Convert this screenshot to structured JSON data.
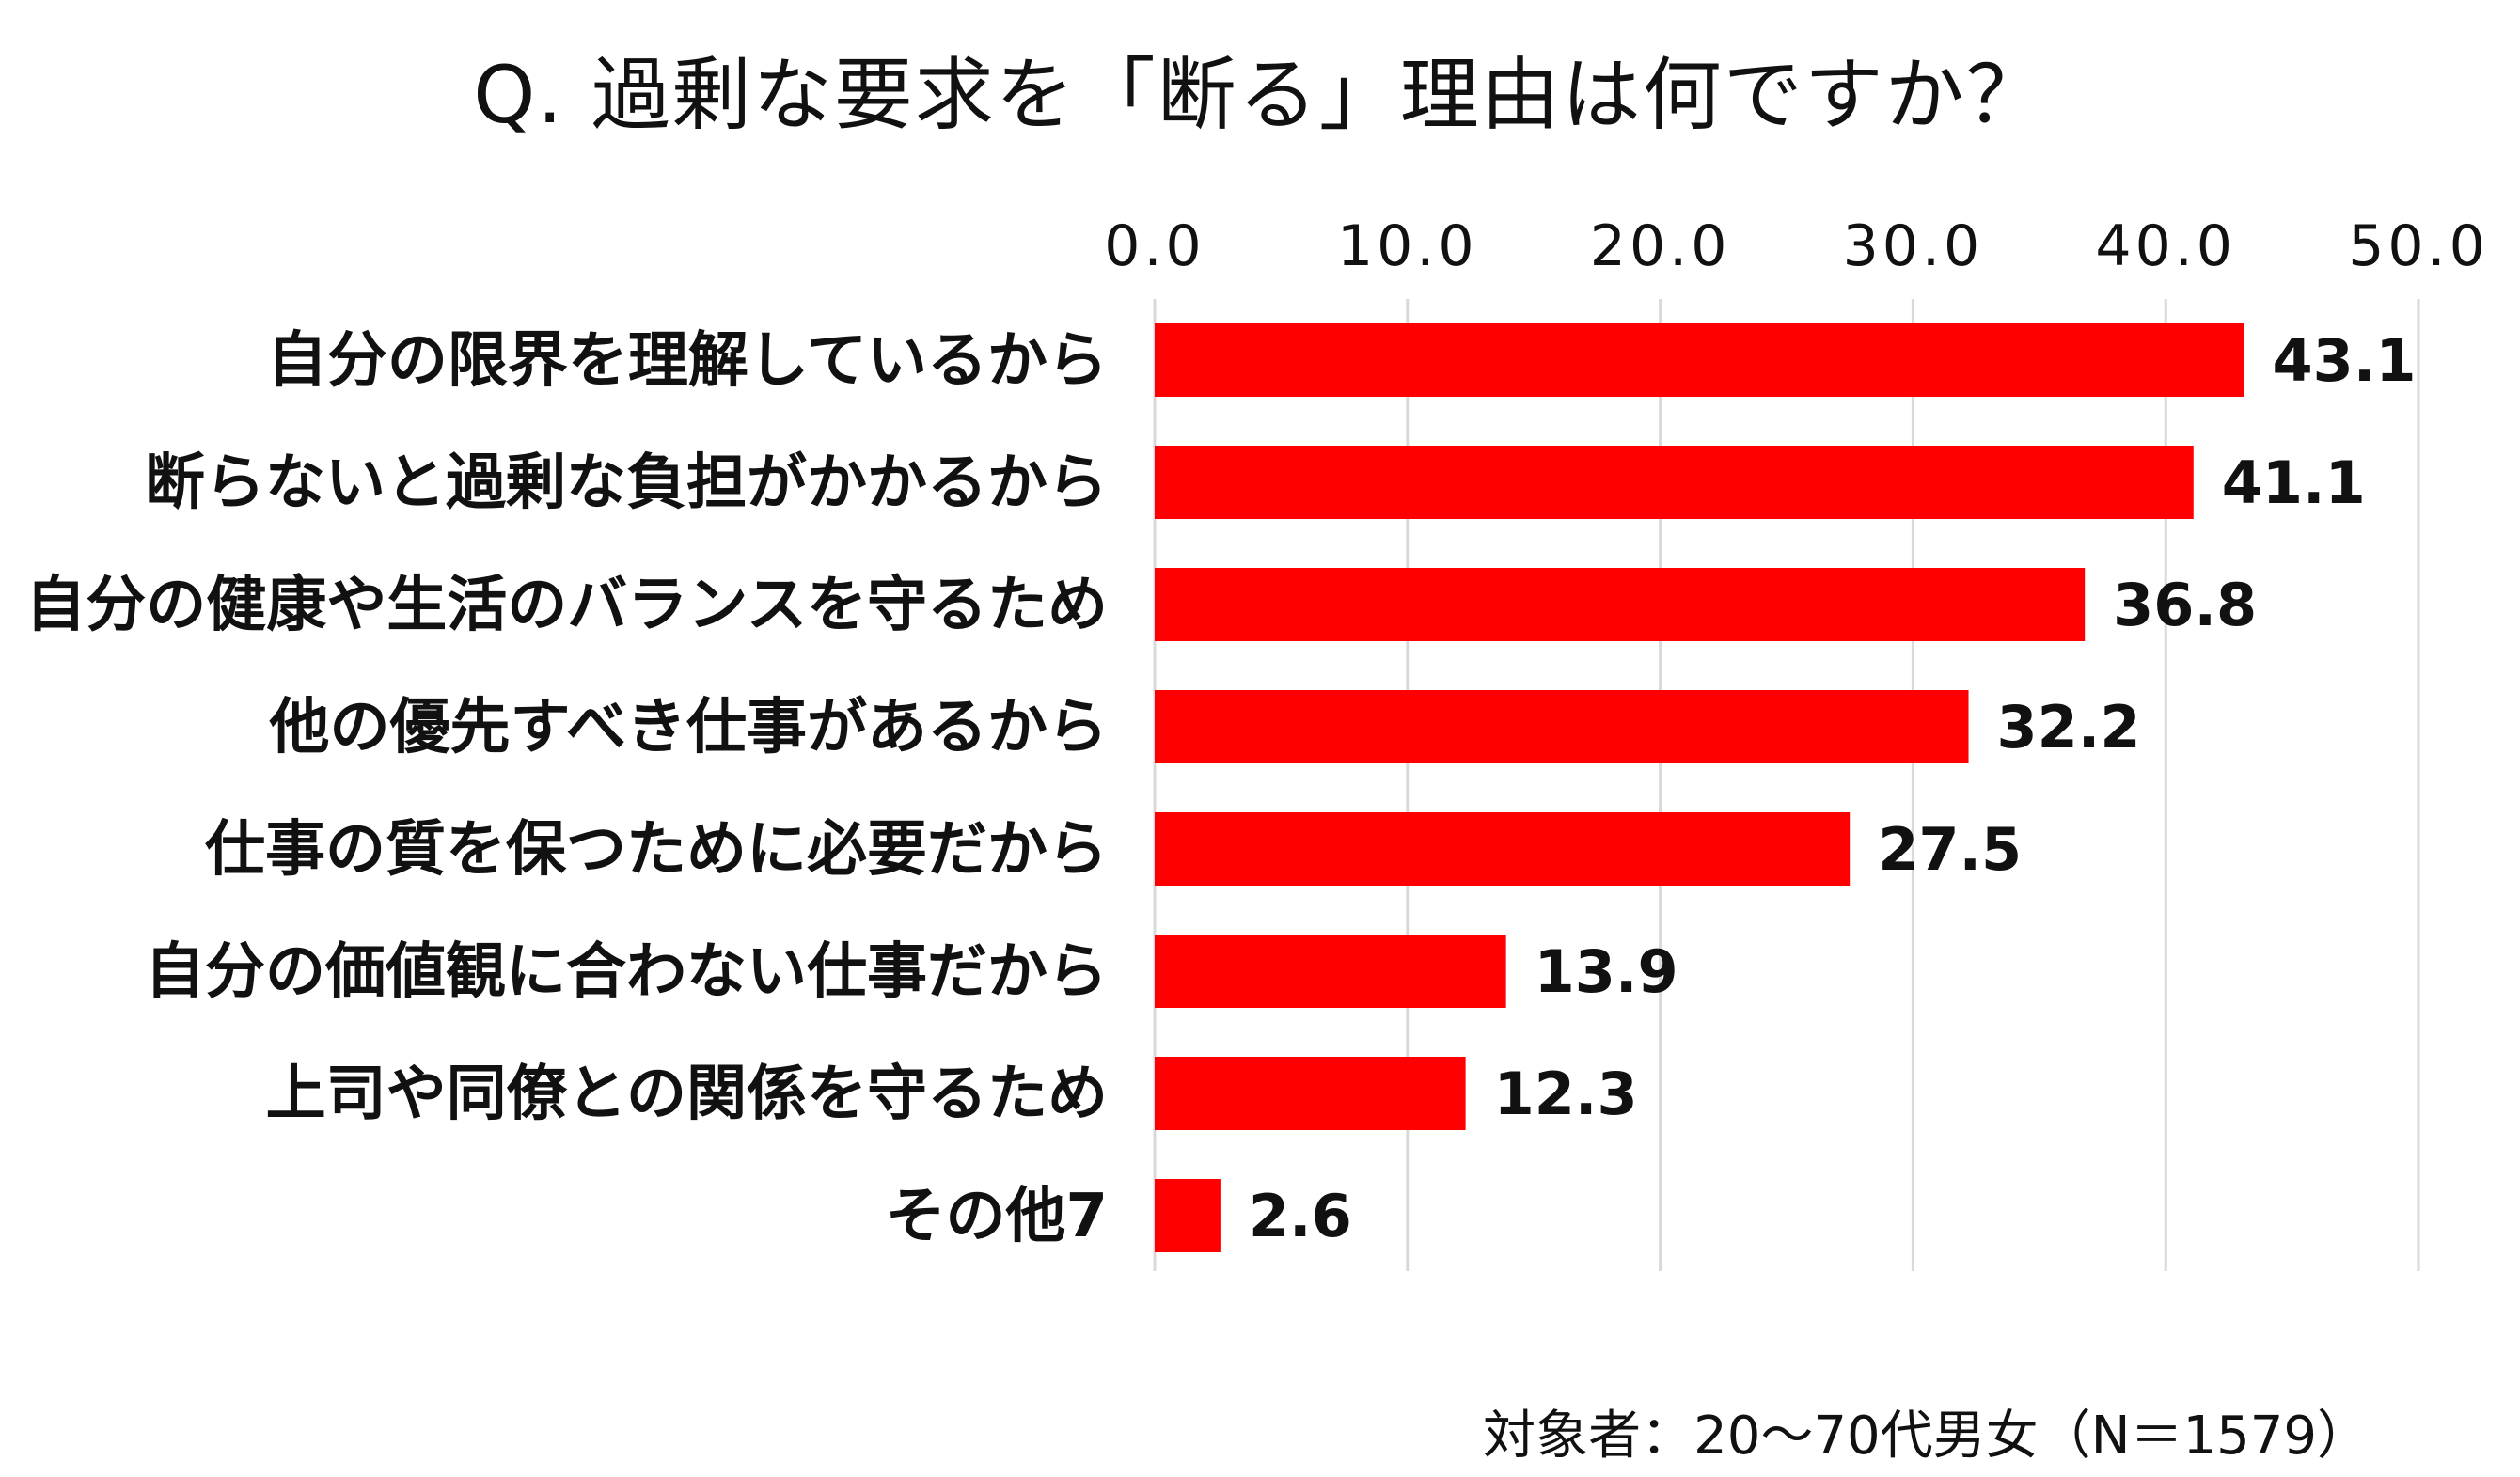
{
  "chart_data": {
    "type": "bar",
    "orientation": "horizontal",
    "title": "Q. 過剰な要求を「断る」理由は何ですか？",
    "categories": [
      "自分の限界を理解しているから",
      "断らないと過剰な負担がかかるから",
      "自分の健康や生活のバランスを守るため",
      "他の優先すべき仕事があるから",
      "仕事の質を保つために必要だから",
      "自分の価値観に合わない仕事だから",
      "上司や同僚との関係を守るため",
      "その他7"
    ],
    "values": [
      43.1,
      41.1,
      36.8,
      32.2,
      27.5,
      13.9,
      12.3,
      2.6
    ],
    "value_labels": [
      "43.1",
      "41.1",
      "36.8",
      "32.2",
      "27.5",
      "13.9",
      "12.3",
      "2.6"
    ],
    "xticks": [
      "0.0",
      "10.0",
      "20.0",
      "30.0",
      "40.0",
      "50.0"
    ],
    "xlim": [
      0,
      50
    ],
    "grid": true,
    "tick_position": "top",
    "bar_color": "#ff0000",
    "grid_color": "#d9d9d9"
  },
  "footnote": "対象者：20～70代男女（N＝1579）"
}
